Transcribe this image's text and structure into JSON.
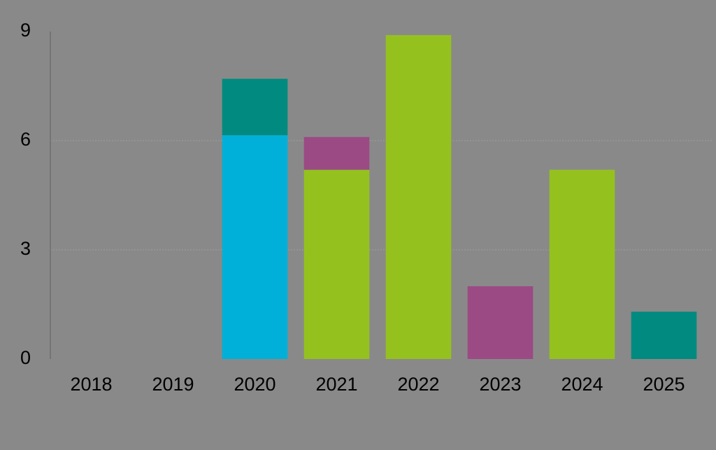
{
  "chart_data": {
    "type": "stacked-bar",
    "categories": [
      "2018",
      "2019",
      "2020",
      "2021",
      "2022",
      "2023",
      "2024",
      "2025"
    ],
    "series": [
      {
        "color": "#00b0d8",
        "values": [
          null,
          null,
          6.15,
          null,
          null,
          null,
          null,
          null
        ]
      },
      {
        "color": "#95c11f",
        "values": [
          null,
          null,
          null,
          5.2,
          8.9,
          null,
          5.2,
          null
        ]
      },
      {
        "color": "#9b4a84",
        "values": [
          null,
          null,
          null,
          0.9,
          null,
          2.0,
          null,
          null
        ]
      },
      {
        "color": "#008a80",
        "values": [
          null,
          null,
          1.55,
          null,
          null,
          null,
          null,
          1.3
        ]
      }
    ],
    "ylim": [
      0,
      9
    ],
    "yticks": [
      0,
      3,
      6,
      9
    ],
    "grid": true
  }
}
